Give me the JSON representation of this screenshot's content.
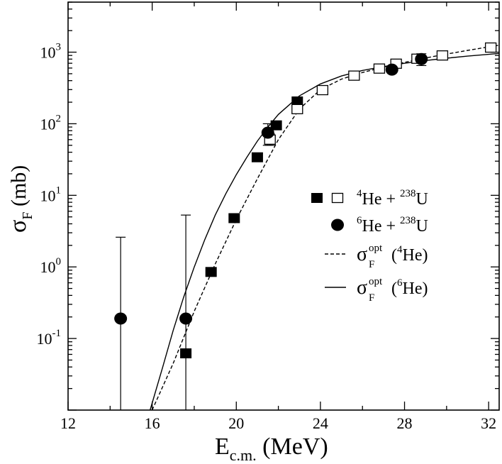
{
  "chart_data": {
    "type": "scatter",
    "xlabel": "E",
    "xlabel_sub": "c.m.",
    "xlabel_unit": "(MeV)",
    "ylabel": "σ",
    "ylabel_sub": "F",
    "ylabel_unit": "(mb)",
    "xlim": [
      12,
      32.5
    ],
    "ylim": [
      0.01,
      5000
    ],
    "yscale": "log",
    "x_ticks": [
      12,
      16,
      20,
      24,
      28,
      32
    ],
    "x_tick_labels": [
      "12",
      "16",
      "20",
      "24",
      "28",
      "32"
    ],
    "y_ticks": [
      0.1,
      1,
      10,
      100,
      1000
    ],
    "y_tick_labels": [
      {
        "base": "10",
        "exp": "-1"
      },
      {
        "base": "10",
        "exp": "0"
      },
      {
        "base": "10",
        "exp": "1"
      },
      {
        "base": "10",
        "exp": "2"
      },
      {
        "base": "10",
        "exp": "3"
      }
    ],
    "legend_position": "right-middle",
    "series": [
      {
        "key": "he4_filled",
        "marker": "filled-square",
        "points": [
          {
            "x": 17.6,
            "y": 0.062
          },
          {
            "x": 18.8,
            "y": 0.85
          },
          {
            "x": 19.9,
            "y": 4.8
          },
          {
            "x": 21.0,
            "y": 34
          },
          {
            "x": 21.9,
            "y": 95
          },
          {
            "x": 22.9,
            "y": 205
          }
        ]
      },
      {
        "key": "he4_open",
        "marker": "open-square",
        "points": [
          {
            "x": 21.6,
            "y": 60,
            "err_lo": 50,
            "err_hi": 72
          },
          {
            "x": 22.9,
            "y": 160
          },
          {
            "x": 24.1,
            "y": 295
          },
          {
            "x": 25.6,
            "y": 470
          },
          {
            "x": 26.8,
            "y": 590
          },
          {
            "x": 27.6,
            "y": 690
          },
          {
            "x": 28.6,
            "y": 810
          },
          {
            "x": 29.8,
            "y": 900
          },
          {
            "x": 32.1,
            "y": 1160
          }
        ]
      },
      {
        "key": "he6",
        "marker": "filled-circle",
        "points": [
          {
            "x": 14.5,
            "y": 0.19,
            "err_lo": 0.0001,
            "err_hi": 2.6
          },
          {
            "x": 17.6,
            "y": 0.19,
            "err_lo": 0.0001,
            "err_hi": 5.3
          },
          {
            "x": 21.5,
            "y": 75,
            "err_lo": 50,
            "err_hi": 100
          },
          {
            "x": 27.4,
            "y": 570
          },
          {
            "x": 28.8,
            "y": 800,
            "err_lo": 650,
            "err_hi": 950
          }
        ]
      }
    ],
    "curves": [
      {
        "key": "opt_he4",
        "style": "dashed",
        "points": [
          [
            16.0,
            0.01
          ],
          [
            17.0,
            0.045
          ],
          [
            18.0,
            0.24
          ],
          [
            19.0,
            1.1
          ],
          [
            20.0,
            4.6
          ],
          [
            21.0,
            17
          ],
          [
            22.0,
            60
          ],
          [
            23.0,
            160
          ],
          [
            24.0,
            300
          ],
          [
            25.0,
            420
          ],
          [
            26.0,
            520
          ],
          [
            27.0,
            620
          ],
          [
            28.0,
            720
          ],
          [
            29.0,
            830
          ],
          [
            30.0,
            940
          ],
          [
            31.0,
            1060
          ],
          [
            32.5,
            1250
          ]
        ]
      },
      {
        "key": "opt_he6",
        "style": "solid",
        "points": [
          [
            15.9,
            0.01
          ],
          [
            16.5,
            0.04
          ],
          [
            17.0,
            0.13
          ],
          [
            17.5,
            0.38
          ],
          [
            18.0,
            1.0
          ],
          [
            18.5,
            2.4
          ],
          [
            19.0,
            5.3
          ],
          [
            19.5,
            10.5
          ],
          [
            20.0,
            19.5
          ],
          [
            20.5,
            34
          ],
          [
            21.0,
            57
          ],
          [
            21.5,
            90
          ],
          [
            22.0,
            135
          ],
          [
            23.0,
            245
          ],
          [
            24.0,
            360
          ],
          [
            25.0,
            465
          ],
          [
            26.0,
            555
          ],
          [
            27.0,
            630
          ],
          [
            28.0,
            700
          ],
          [
            29.0,
            765
          ],
          [
            30.0,
            825
          ],
          [
            31.0,
            880
          ],
          [
            32.5,
            960
          ]
        ]
      }
    ],
    "legend": [
      {
        "key": "he4",
        "markers": [
          "filled-square",
          "open-square"
        ],
        "label_parts": [
          {
            "sup": "4"
          },
          {
            "text": "He + "
          },
          {
            "sup": "238"
          },
          {
            "text": "U"
          }
        ]
      },
      {
        "key": "he6",
        "markers": [
          "filled-circle"
        ],
        "label_parts": [
          {
            "sup": "6"
          },
          {
            "text": "He + "
          },
          {
            "sup": "238"
          },
          {
            "text": "U"
          }
        ]
      },
      {
        "key": "opt_he4",
        "line": "dashed",
        "label": {
          "sym": "σ",
          "sub": "F",
          "sup": "opt",
          "open": " (",
          "iso": "4",
          "rest": "He)"
        }
      },
      {
        "key": "opt_he6",
        "line": "solid",
        "label": {
          "sym": "σ",
          "sub": "F",
          "sup": "opt",
          "open": " (",
          "iso": "6",
          "rest": "He)"
        }
      }
    ]
  }
}
